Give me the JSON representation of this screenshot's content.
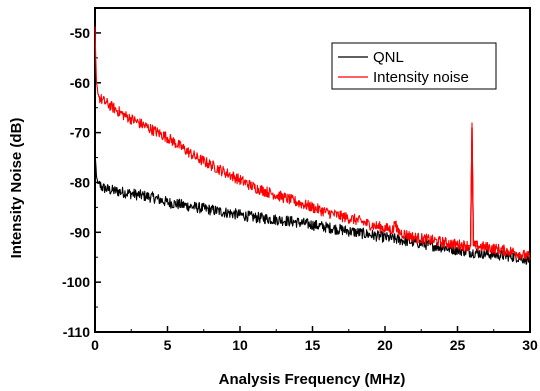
{
  "chart_data": {
    "type": "line",
    "xlabel": "Analysis Frequency (MHz)",
    "ylabel": "Intensity Noise (dB)",
    "xlim": [
      0,
      30
    ],
    "ylim": [
      -110,
      -45
    ],
    "x_ticks": [
      0,
      5,
      10,
      15,
      20,
      25,
      30
    ],
    "y_ticks": [
      -110,
      -100,
      -90,
      -80,
      -70,
      -60,
      -50
    ],
    "x_tick_labels": [
      "0",
      "5",
      "10",
      "15",
      "20",
      "25",
      "30"
    ],
    "y_tick_labels": [
      "-110",
      "-100",
      "-90",
      "-80",
      "-70",
      "-60",
      "-50"
    ],
    "grid": false,
    "legend_position": "top-right",
    "series": [
      {
        "name": "QNL",
        "color": "#000000",
        "x": [
          0,
          0.05,
          0.1,
          0.2,
          0.3,
          0.5,
          1,
          2,
          3,
          4,
          5,
          6,
          7,
          8,
          9,
          10,
          11,
          12,
          13,
          14,
          15,
          16,
          17,
          18,
          19,
          20,
          21,
          22,
          23,
          24,
          25,
          26,
          27,
          28,
          29,
          30
        ],
        "y": [
          -74,
          -76,
          -79,
          -80,
          -80.5,
          -81,
          -81.5,
          -82,
          -82.5,
          -83,
          -84,
          -84.5,
          -85,
          -85.5,
          -86,
          -86.5,
          -87,
          -87.3,
          -87.6,
          -88,
          -88.5,
          -89,
          -89.5,
          -90,
          -90.5,
          -91,
          -91.5,
          -92,
          -92.5,
          -93,
          -93.5,
          -94,
          -94.3,
          -94.6,
          -94.9,
          -95.5
        ]
      },
      {
        "name": "Intensity noise",
        "color": "#ff0000",
        "x": [
          0,
          0.05,
          0.1,
          0.2,
          0.3,
          0.5,
          1,
          2,
          3,
          4,
          5,
          6,
          7,
          8,
          9,
          10,
          11,
          12,
          13,
          14,
          15,
          16,
          17,
          18,
          19,
          20,
          20.6,
          20.7,
          20.8,
          21,
          22,
          23,
          24,
          25,
          25.9,
          26.0,
          26.1,
          27,
          28,
          29,
          30
        ],
        "y": [
          -49,
          -55,
          -60,
          -62,
          -63,
          -63.5,
          -64.5,
          -66.5,
          -68,
          -69.5,
          -71,
          -73,
          -75,
          -76.5,
          -78,
          -79.5,
          -81,
          -82,
          -83,
          -84,
          -85,
          -86,
          -86.8,
          -87.5,
          -88.5,
          -89.2,
          -89.5,
          -87,
          -89.5,
          -90,
          -91,
          -91.5,
          -92,
          -92.5,
          -92.7,
          -69,
          -92.7,
          -93,
          -93.5,
          -94,
          -95
        ]
      }
    ]
  }
}
